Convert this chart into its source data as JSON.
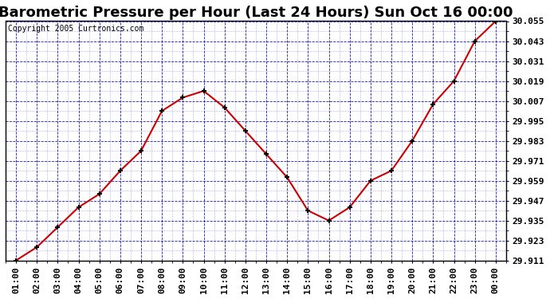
{
  "title": "Barometric Pressure per Hour (Last 24 Hours) Sun Oct 16 00:00",
  "copyright": "Copyright 2005 Curtronics.com",
  "x_labels": [
    "01:00",
    "02:00",
    "03:00",
    "04:00",
    "05:00",
    "06:00",
    "07:00",
    "08:00",
    "09:00",
    "10:00",
    "11:00",
    "12:00",
    "13:00",
    "14:00",
    "15:00",
    "16:00",
    "17:00",
    "18:00",
    "19:00",
    "20:00",
    "21:00",
    "22:00",
    "23:00",
    "00:00"
  ],
  "y_values": [
    29.911,
    29.919,
    29.931,
    29.943,
    29.951,
    29.965,
    29.977,
    30.001,
    30.009,
    30.013,
    30.003,
    29.989,
    29.975,
    29.961,
    29.941,
    29.935,
    29.943,
    29.959,
    29.965,
    29.983,
    30.005,
    30.019,
    30.043,
    30.055
  ],
  "ylim_min": 29.911,
  "ylim_max": 30.055,
  "yticks": [
    29.911,
    29.923,
    29.935,
    29.947,
    29.959,
    29.971,
    29.983,
    29.995,
    30.007,
    30.019,
    30.031,
    30.043,
    30.055
  ],
  "line_color": "#cc0000",
  "marker_color": "#000000",
  "plot_bg_color": "#ffffff",
  "grid_color": "#0000bb",
  "outer_bg_color": "#ffffff",
  "title_fontsize": 13,
  "copyright_fontsize": 7,
  "tick_fontsize": 8,
  "border_color": "#000000"
}
